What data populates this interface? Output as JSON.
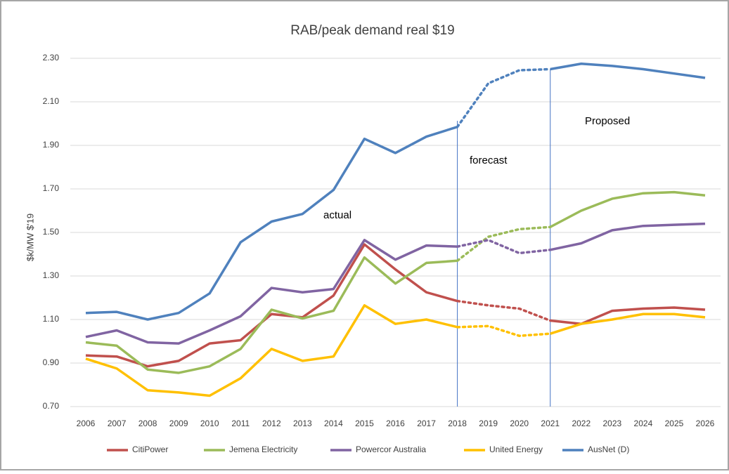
{
  "chart_data": {
    "type": "line",
    "title": "RAB/peak demand real $19",
    "y_label": "$k/MW $'19",
    "x": [
      2006,
      2007,
      2008,
      2009,
      2010,
      2011,
      2012,
      2013,
      2014,
      2015,
      2016,
      2017,
      2018,
      2019,
      2020,
      2021,
      2022,
      2023,
      2024,
      2025,
      2026
    ],
    "ylim": [
      0.7,
      2.3
    ],
    "yticks": [
      {
        "value": 0.7,
        "label": "0.70"
      },
      {
        "value": 0.9,
        "label": "0.90"
      },
      {
        "value": 1.1,
        "label": "1.10"
      },
      {
        "value": 1.3,
        "label": "1.30"
      },
      {
        "value": 1.5,
        "label": "1.50"
      },
      {
        "value": 1.7,
        "label": "1.70"
      },
      {
        "value": 1.9,
        "label": "1.90"
      },
      {
        "value": 2.1,
        "label": "2.10"
      },
      {
        "value": 2.3,
        "label": "2.30"
      }
    ],
    "grid": true,
    "dotted_between": [
      2018,
      2021
    ],
    "annotations": [
      "actual",
      "forecast",
      "Proposed"
    ],
    "series": [
      {
        "name": "CitiPower",
        "color": "#c0504d",
        "values": [
          0.935,
          0.93,
          0.885,
          0.91,
          0.99,
          1.005,
          1.125,
          1.11,
          1.21,
          1.445,
          1.33,
          1.225,
          1.185,
          1.165,
          1.15,
          1.095,
          1.08,
          1.14,
          1.15,
          1.155,
          1.145
        ]
      },
      {
        "name": "Jemena Electricity",
        "color": "#9bbb59",
        "values": [
          0.995,
          0.98,
          0.87,
          0.855,
          0.885,
          0.965,
          1.145,
          1.105,
          1.14,
          1.385,
          1.265,
          1.36,
          1.37,
          1.48,
          1.515,
          1.525,
          1.6,
          1.655,
          1.68,
          1.685,
          1.67
        ]
      },
      {
        "name": "Powercor Australia",
        "color": "#8064a2",
        "values": [
          1.02,
          1.05,
          0.995,
          0.99,
          1.05,
          1.115,
          1.245,
          1.225,
          1.24,
          1.465,
          1.375,
          1.44,
          1.435,
          1.465,
          1.405,
          1.42,
          1.45,
          1.51,
          1.53,
          1.535,
          1.54
        ]
      },
      {
        "name": "United Energy",
        "color": "#ffc000",
        "values": [
          0.92,
          0.875,
          0.775,
          0.765,
          0.75,
          0.83,
          0.965,
          0.91,
          0.93,
          1.165,
          1.08,
          1.1,
          1.065,
          1.07,
          1.025,
          1.035,
          1.08,
          1.1,
          1.125,
          1.125,
          1.11
        ]
      },
      {
        "name": "AusNet (D)",
        "color": "#4f81bd",
        "values": [
          1.13,
          1.135,
          1.1,
          1.13,
          1.22,
          1.455,
          1.55,
          1.585,
          1.695,
          1.93,
          1.865,
          1.94,
          1.985,
          2.185,
          2.245,
          2.25,
          2.275,
          2.265,
          2.25,
          2.23,
          2.21
        ]
      }
    ]
  }
}
